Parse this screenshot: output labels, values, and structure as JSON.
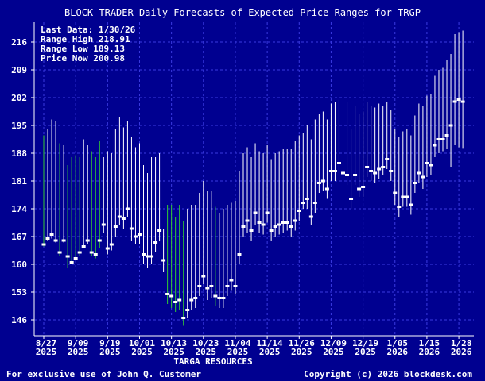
{
  "chart_data": {
    "type": "range-bar",
    "title": "BLOCK TRADER Daily Forecasts of Expected Price Ranges for TRGP",
    "info": {
      "last_data": "Last Data: 1/30/26",
      "range_high": "Range High  218.91",
      "range_low": "Range Low   189.13",
      "price_now": "Price Now  200.98"
    },
    "company": "TARGA RESOURCES",
    "ylim": [
      142,
      221
    ],
    "y_ticks": [
      146,
      153,
      160,
      167,
      174,
      181,
      188,
      195,
      202,
      209,
      216
    ],
    "x_ticks": [
      {
        "index": 0,
        "label1": "8/27",
        "label2": "2025"
      },
      {
        "index": 8,
        "label1": "9/09",
        "label2": "2025"
      },
      {
        "index": 16,
        "label1": "9/19",
        "label2": "2025"
      },
      {
        "index": 24,
        "label1": "10/01",
        "label2": "2025"
      },
      {
        "index": 32,
        "label1": "10/13",
        "label2": "2025"
      },
      {
        "index": 40,
        "label1": "10/23",
        "label2": "2025"
      },
      {
        "index": 48,
        "label1": "11/04",
        "label2": "2025"
      },
      {
        "index": 56,
        "label1": "11/14",
        "label2": "2025"
      },
      {
        "index": 64,
        "label1": "11/26",
        "label2": "2025"
      },
      {
        "index": 72,
        "label1": "12/09",
        "label2": "2025"
      },
      {
        "index": 80,
        "label1": "12/19",
        "label2": "2025"
      },
      {
        "index": 88,
        "label1": "1/05",
        "label2": "2026"
      },
      {
        "index": 96,
        "label1": "1/15",
        "label2": "2026"
      },
      {
        "index": 104,
        "label1": "1/28",
        "label2": "2026"
      }
    ],
    "series": [
      {
        "low": 164.5,
        "high": 192.5,
        "close": 165.0,
        "color": "green"
      },
      {
        "low": 166.0,
        "high": 194.0,
        "close": 166.5,
        "color": "white"
      },
      {
        "low": 166.5,
        "high": 196.5,
        "close": 167.5,
        "color": "white"
      },
      {
        "low": 165.5,
        "high": 196.0,
        "close": 166.0,
        "color": "white"
      },
      {
        "low": 162.0,
        "high": 190.5,
        "close": 163.0,
        "color": "green"
      },
      {
        "low": 165.5,
        "high": 190.0,
        "close": 166.0,
        "color": "white"
      },
      {
        "low": 159.0,
        "high": 185.0,
        "close": 162.0,
        "color": "green"
      },
      {
        "low": 160.0,
        "high": 187.0,
        "close": 160.5,
        "color": "green"
      },
      {
        "low": 161.0,
        "high": 187.5,
        "close": 161.5,
        "color": "green"
      },
      {
        "low": 162.0,
        "high": 187.0,
        "close": 163.0,
        "color": "green"
      },
      {
        "low": 164.0,
        "high": 191.5,
        "close": 164.5,
        "color": "white"
      },
      {
        "low": 165.0,
        "high": 190.0,
        "close": 166.0,
        "color": "white"
      },
      {
        "low": 162.0,
        "high": 188.5,
        "close": 163.0,
        "color": "green"
      },
      {
        "low": 161.5,
        "high": 187.0,
        "close": 162.5,
        "color": "green"
      },
      {
        "low": 164.0,
        "high": 191.0,
        "close": 166.0,
        "color": "green"
      },
      {
        "low": 168.0,
        "high": 187.0,
        "close": 170.0,
        "color": "white"
      },
      {
        "low": 162.5,
        "high": 188.5,
        "close": 164.0,
        "color": "white"
      },
      {
        "low": 163.5,
        "high": 188.0,
        "close": 165.0,
        "color": "white"
      },
      {
        "low": 167.0,
        "high": 194.0,
        "close": 169.5,
        "color": "white"
      },
      {
        "low": 170.0,
        "high": 197.0,
        "close": 172.0,
        "color": "white"
      },
      {
        "low": 169.0,
        "high": 194.5,
        "close": 171.5,
        "color": "white"
      },
      {
        "low": 172.0,
        "high": 196.0,
        "close": 174.0,
        "color": "white"
      },
      {
        "low": 166.0,
        "high": 192.0,
        "close": 169.0,
        "color": "white"
      },
      {
        "low": 165.0,
        "high": 189.5,
        "close": 167.0,
        "color": "white"
      },
      {
        "low": 165.0,
        "high": 190.5,
        "close": 167.5,
        "color": "white"
      },
      {
        "low": 160.0,
        "high": 185.0,
        "close": 162.5,
        "color": "white"
      },
      {
        "low": 159.0,
        "high": 183.0,
        "close": 162.0,
        "color": "white"
      },
      {
        "low": 160.0,
        "high": 187.0,
        "close": 162.0,
        "color": "white"
      },
      {
        "low": 163.0,
        "high": 187.0,
        "close": 165.5,
        "color": "white"
      },
      {
        "low": 166.0,
        "high": 188.0,
        "close": 168.5,
        "color": "white"
      },
      {
        "low": 158.0,
        "high": 169.0,
        "close": 161.0,
        "color": "white"
      },
      {
        "low": 150.0,
        "high": 175.0,
        "close": 152.5,
        "color": "green"
      },
      {
        "low": 149.0,
        "high": 175.0,
        "close": 152.0,
        "color": "green"
      },
      {
        "low": 148.0,
        "high": 172.0,
        "close": 150.5,
        "color": "green"
      },
      {
        "low": 148.5,
        "high": 175.0,
        "close": 151.0,
        "color": "green"
      },
      {
        "low": 144.5,
        "high": 171.0,
        "close": 146.5,
        "color": "green"
      },
      {
        "low": 146.5,
        "high": 174.0,
        "close": 148.5,
        "color": "white"
      },
      {
        "low": 148.5,
        "high": 175.0,
        "close": 151.0,
        "color": "white"
      },
      {
        "low": 149.0,
        "high": 175.0,
        "close": 151.5,
        "color": "white"
      },
      {
        "low": 152.0,
        "high": 178.0,
        "close": 154.5,
        "color": "white"
      },
      {
        "low": 155.0,
        "high": 181.0,
        "close": 157.0,
        "color": "white"
      },
      {
        "low": 151.0,
        "high": 178.5,
        "close": 154.0,
        "color": "white"
      },
      {
        "low": 151.5,
        "high": 178.5,
        "close": 154.5,
        "color": "white"
      },
      {
        "low": 149.5,
        "high": 174.5,
        "close": 152.0,
        "color": "green"
      },
      {
        "low": 149.0,
        "high": 173.0,
        "close": 151.5,
        "color": "white"
      },
      {
        "low": 149.0,
        "high": 174.0,
        "close": 151.5,
        "color": "white"
      },
      {
        "low": 152.0,
        "high": 175.0,
        "close": 154.5,
        "color": "white"
      },
      {
        "low": 153.5,
        "high": 175.5,
        "close": 156.0,
        "color": "white"
      },
      {
        "low": 152.5,
        "high": 176.0,
        "close": 154.5,
        "color": "white"
      },
      {
        "low": 160.0,
        "high": 183.5,
        "close": 162.5,
        "color": "white"
      },
      {
        "low": 167.0,
        "high": 188.0,
        "close": 169.5,
        "color": "white"
      },
      {
        "low": 168.0,
        "high": 189.5,
        "close": 171.0,
        "color": "white"
      },
      {
        "low": 166.0,
        "high": 187.0,
        "close": 168.5,
        "color": "white"
      },
      {
        "low": 170.0,
        "high": 190.5,
        "close": 173.0,
        "color": "white"
      },
      {
        "low": 168.0,
        "high": 188.5,
        "close": 170.5,
        "color": "white"
      },
      {
        "low": 167.5,
        "high": 188.0,
        "close": 170.0,
        "color": "white"
      },
      {
        "low": 170.5,
        "high": 190.0,
        "close": 173.0,
        "color": "white"
      },
      {
        "low": 166.0,
        "high": 186.5,
        "close": 168.5,
        "color": "white"
      },
      {
        "low": 167.0,
        "high": 188.0,
        "close": 169.5,
        "color": "white"
      },
      {
        "low": 167.5,
        "high": 188.5,
        "close": 170.0,
        "color": "white"
      },
      {
        "low": 168.0,
        "high": 189.0,
        "close": 170.5,
        "color": "white"
      },
      {
        "low": 168.5,
        "high": 189.0,
        "close": 170.5,
        "color": "white"
      },
      {
        "low": 167.0,
        "high": 189.0,
        "close": 169.5,
        "color": "white"
      },
      {
        "low": 168.5,
        "high": 191.0,
        "close": 171.0,
        "color": "white"
      },
      {
        "low": 171.0,
        "high": 192.5,
        "close": 173.5,
        "color": "white"
      },
      {
        "low": 174.0,
        "high": 193.0,
        "close": 175.5,
        "color": "white"
      },
      {
        "low": 174.0,
        "high": 195.0,
        "close": 176.5,
        "color": "white"
      },
      {
        "low": 170.0,
        "high": 191.5,
        "close": 172.0,
        "color": "white"
      },
      {
        "low": 173.0,
        "high": 196.5,
        "close": 175.5,
        "color": "white"
      },
      {
        "low": 178.0,
        "high": 198.0,
        "close": 180.5,
        "color": "white"
      },
      {
        "low": 178.5,
        "high": 198.5,
        "close": 181.0,
        "color": "white"
      },
      {
        "low": 176.5,
        "high": 196.5,
        "close": 179.0,
        "color": "white"
      },
      {
        "low": 181.0,
        "high": 200.5,
        "close": 183.5,
        "color": "white"
      },
      {
        "low": 181.0,
        "high": 201.0,
        "close": 183.5,
        "color": "white"
      },
      {
        "low": 183.0,
        "high": 201.5,
        "close": 185.5,
        "color": "white"
      },
      {
        "low": 180.5,
        "high": 200.5,
        "close": 183.0,
        "color": "white"
      },
      {
        "low": 180.0,
        "high": 201.0,
        "close": 182.5,
        "color": "white"
      },
      {
        "low": 174.0,
        "high": 194.0,
        "close": 176.5,
        "color": "white"
      },
      {
        "low": 180.0,
        "high": 200.0,
        "close": 182.5,
        "color": "white"
      },
      {
        "low": 177.0,
        "high": 198.0,
        "close": 179.0,
        "color": "white"
      },
      {
        "low": 177.0,
        "high": 198.5,
        "close": 179.5,
        "color": "white"
      },
      {
        "low": 182.0,
        "high": 201.0,
        "close": 184.5,
        "color": "white"
      },
      {
        "low": 181.0,
        "high": 200.0,
        "close": 183.5,
        "color": "white"
      },
      {
        "low": 180.5,
        "high": 199.5,
        "close": 183.0,
        "color": "white"
      },
      {
        "low": 181.5,
        "high": 200.5,
        "close": 184.0,
        "color": "white"
      },
      {
        "low": 182.5,
        "high": 200.0,
        "close": 184.5,
        "color": "white"
      },
      {
        "low": 184.0,
        "high": 201.0,
        "close": 186.5,
        "color": "white"
      },
      {
        "low": 181.0,
        "high": 199.0,
        "close": 183.5,
        "color": "white"
      },
      {
        "low": 175.0,
        "high": 194.0,
        "close": 178.0,
        "color": "white"
      },
      {
        "low": 172.0,
        "high": 192.0,
        "close": 174.5,
        "color": "white"
      },
      {
        "low": 174.5,
        "high": 193.5,
        "close": 177.0,
        "color": "white"
      },
      {
        "low": 174.5,
        "high": 194.0,
        "close": 177.0,
        "color": "white"
      },
      {
        "low": 172.5,
        "high": 192.5,
        "close": 175.0,
        "color": "white"
      },
      {
        "low": 178.0,
        "high": 197.5,
        "close": 180.5,
        "color": "white"
      },
      {
        "low": 180.5,
        "high": 200.5,
        "close": 183.0,
        "color": "white"
      },
      {
        "low": 179.0,
        "high": 200.0,
        "close": 182.0,
        "color": "white"
      },
      {
        "low": 182.0,
        "high": 202.5,
        "close": 185.5,
        "color": "white"
      },
      {
        "low": 182.5,
        "high": 203.0,
        "close": 185.0,
        "color": "white"
      },
      {
        "low": 187.0,
        "high": 207.5,
        "close": 190.0,
        "color": "white"
      },
      {
        "low": 188.0,
        "high": 209.0,
        "close": 191.5,
        "color": "white"
      },
      {
        "low": 188.5,
        "high": 209.5,
        "close": 191.5,
        "color": "white"
      },
      {
        "low": 189.0,
        "high": 211.5,
        "close": 192.5,
        "color": "white"
      },
      {
        "low": 184.5,
        "high": 213.0,
        "close": 195.0,
        "color": "white"
      },
      {
        "low": 190.0,
        "high": 218.0,
        "close": 201.0,
        "color": "white"
      },
      {
        "low": 189.5,
        "high": 218.5,
        "close": 201.5,
        "color": "white"
      },
      {
        "low": 189.13,
        "high": 218.91,
        "close": 200.98,
        "color": "white"
      }
    ]
  },
  "footer": {
    "left": "For exclusive use of John Q. Customer",
    "right": "Copyright (c) 2026 blockdesk.com"
  },
  "colors": {
    "background": "#000090",
    "grid": "#3a3ae0",
    "axis": "#ffffff",
    "range_white": "#ffffff",
    "range_green": "#33cc33"
  }
}
